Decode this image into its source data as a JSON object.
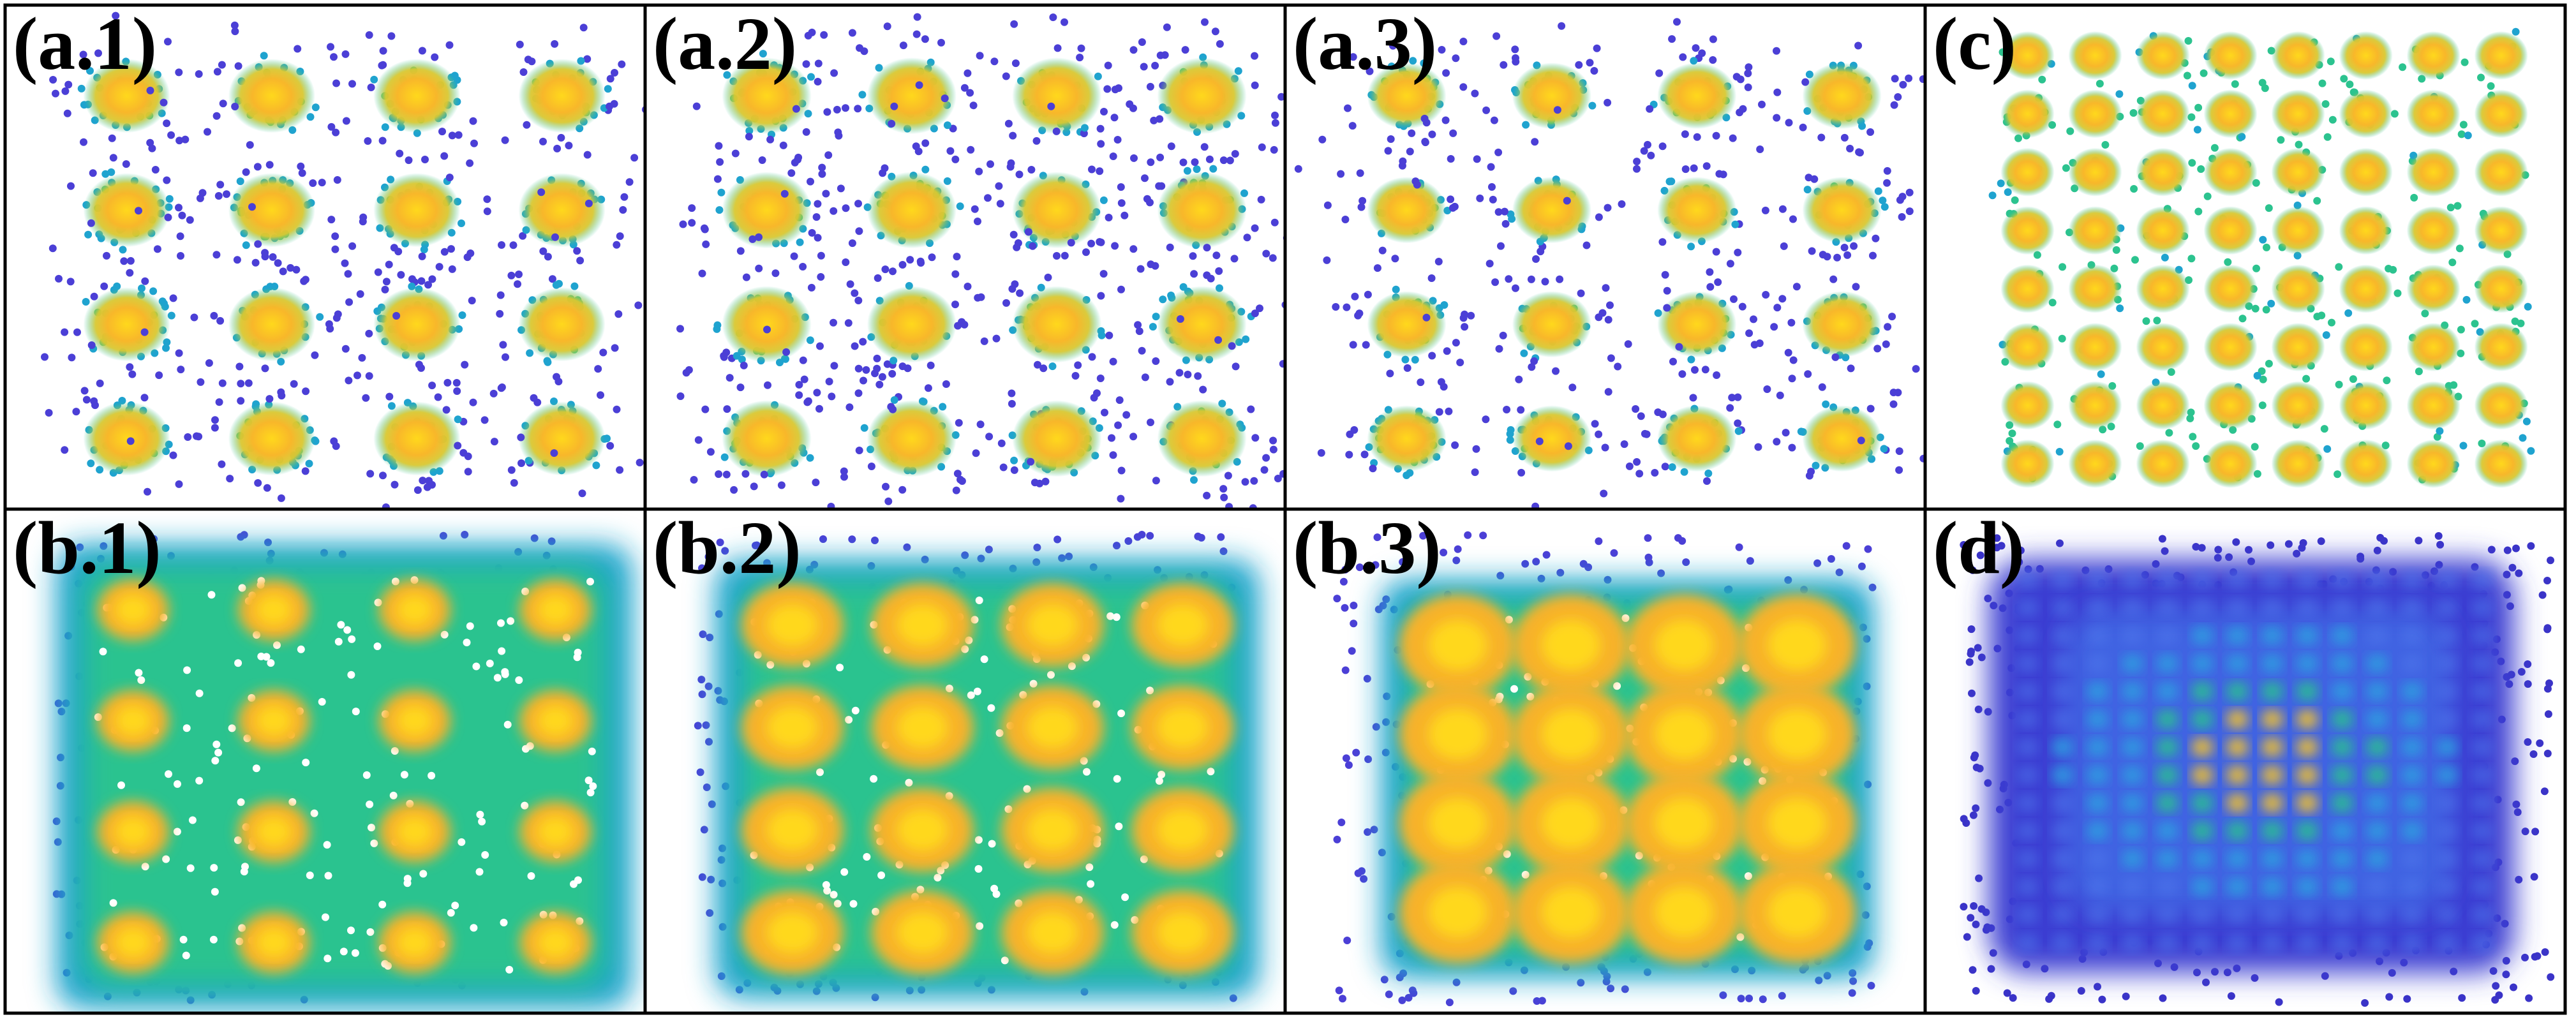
{
  "panels": [
    {
      "label": "(a.1)"
    },
    {
      "label": "(a.2)"
    },
    {
      "label": "(a.3)"
    },
    {
      "label": "(c)"
    },
    {
      "label": "(b.1)"
    },
    {
      "label": "(b.2)"
    },
    {
      "label": "(b.3)"
    },
    {
      "label": "(d)"
    }
  ]
}
